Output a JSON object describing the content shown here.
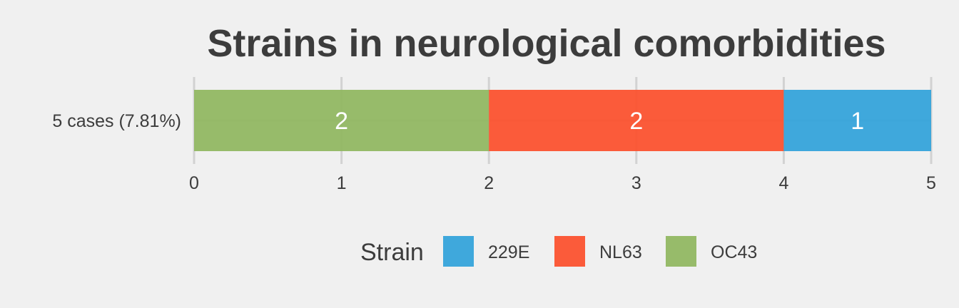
{
  "chart_data": {
    "type": "bar",
    "orientation": "horizontal",
    "stacked": true,
    "title": "Strains in neurological comorbidities",
    "xlabel": "",
    "ylabel": "",
    "categories": [
      "5 cases (7.81%)"
    ],
    "series": [
      {
        "name": "OC43",
        "values": [
          2
        ],
        "color": "#8fb65e"
      },
      {
        "name": "NL63",
        "values": [
          2
        ],
        "color": "#fc4e2a"
      },
      {
        "name": "229E",
        "values": [
          1
        ],
        "color": "#30a2da"
      }
    ],
    "xlim": [
      0,
      5
    ],
    "xticks": [
      "0",
      "1",
      "2",
      "3",
      "4",
      "5"
    ],
    "grid": true,
    "legend": {
      "title": "Strain",
      "position": "bottom",
      "entries": [
        "229E",
        "NL63",
        "OC43"
      ]
    }
  }
}
